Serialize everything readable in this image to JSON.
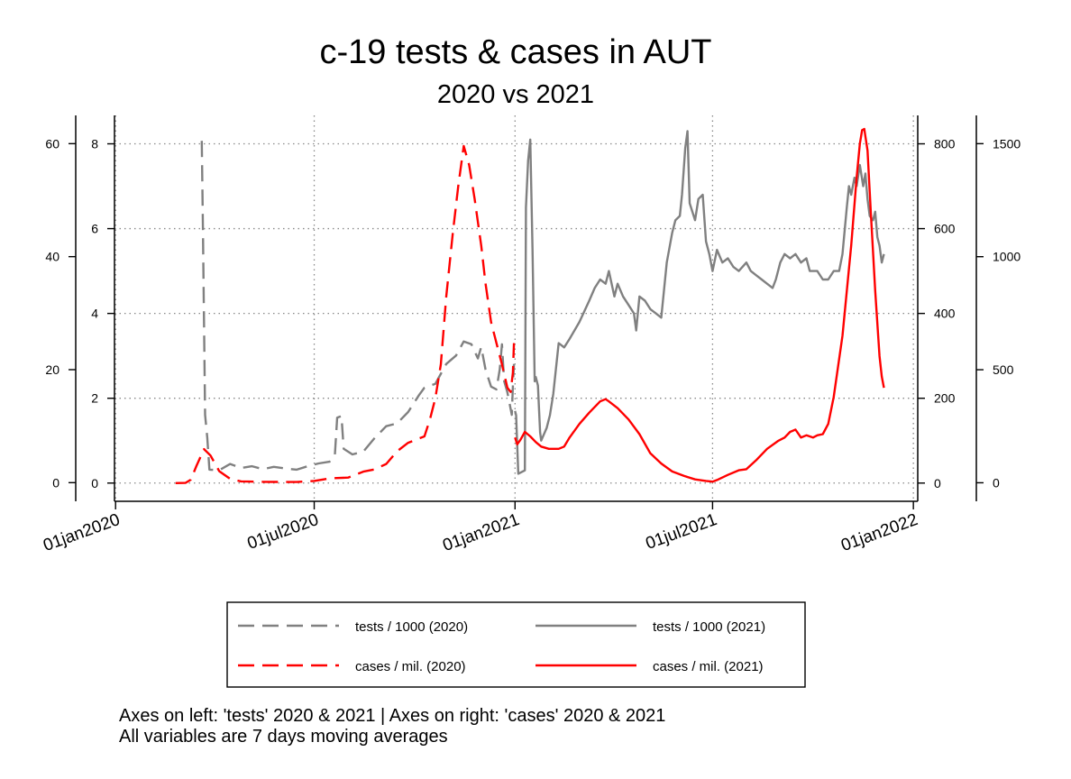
{
  "chart_data": {
    "type": "line",
    "title": "c-19 tests & cases in AUT",
    "subtitle": "2020 vs 2021",
    "notes": [
      "Axes on left: 'tests' 2020 & 2021 | Axes on right: 'cases' 2020 & 2021",
      "All variables are 7 days moving averages"
    ],
    "x_axis": {
      "type": "date",
      "range": [
        "2019-12-31",
        "2022-01-05"
      ],
      "ticks": [
        "2020-01-01",
        "2020-07-01",
        "2021-01-01",
        "2021-07-01",
        "2022-01-01"
      ],
      "tick_labels": [
        "01jan2020",
        "01jul2020",
        "01jan2021",
        "01jul2021",
        "01jan2022"
      ]
    },
    "axes": {
      "left_outer": {
        "range": [
          -3.3,
          65
        ],
        "ticks": [
          0,
          20,
          40,
          60
        ],
        "applies_to": "tests / 1000 (2020)"
      },
      "left_inner": {
        "range": [
          -0.43,
          8.67
        ],
        "ticks": [
          0,
          2,
          4,
          6,
          8
        ],
        "applies_to": "tests / 1000 (2021)"
      },
      "right_inner": {
        "range": [
          -43,
          867
        ],
        "ticks": [
          0,
          200,
          400,
          600,
          800
        ],
        "applies_to": "cases / mil. (2020)"
      },
      "right_outer": {
        "range": [
          -82,
          1625
        ],
        "ticks": [
          0,
          500,
          1000,
          1500
        ],
        "applies_to": "cases / mil. (2021)"
      }
    },
    "grid": true,
    "legend_position": "bottom",
    "legend": [
      "tests / 1000 (2020)",
      "tests / 1000 (2021)",
      "cases / mil. (2020)",
      "cases / mil. (2021)"
    ],
    "series": [
      {
        "name": "tests / 1000 (2020)",
        "axis": "left_outer",
        "color": "#808080",
        "dash": "dashed",
        "points": [
          [
            "2020-03-20",
            60.5
          ],
          [
            "2020-03-21",
            45
          ],
          [
            "2020-03-23",
            12
          ],
          [
            "2020-03-25",
            8
          ],
          [
            "2020-03-27",
            2.3
          ],
          [
            "2020-04-05",
            2.2
          ],
          [
            "2020-04-15",
            3.3
          ],
          [
            "2020-04-25",
            2.6
          ],
          [
            "2020-05-05",
            2.9
          ],
          [
            "2020-05-15",
            2.4
          ],
          [
            "2020-05-25",
            2.8
          ],
          [
            "2020-06-05",
            2.5
          ],
          [
            "2020-06-15",
            2.3
          ],
          [
            "2020-06-25",
            2.9
          ],
          [
            "2020-07-05",
            3.4
          ],
          [
            "2020-07-15",
            3.7
          ],
          [
            "2020-07-20",
            5
          ],
          [
            "2020-07-22",
            11.5
          ],
          [
            "2020-07-26",
            11.8
          ],
          [
            "2020-07-28",
            6
          ],
          [
            "2020-08-05",
            5
          ],
          [
            "2020-08-15",
            5.5
          ],
          [
            "2020-08-25",
            7.8
          ],
          [
            "2020-09-05",
            10
          ],
          [
            "2020-09-15",
            10.5
          ],
          [
            "2020-09-25",
            12.5
          ],
          [
            "2020-10-05",
            15.5
          ],
          [
            "2020-10-10",
            16.8
          ],
          [
            "2020-10-20",
            17.5
          ],
          [
            "2020-10-30",
            21
          ],
          [
            "2020-11-08",
            22.5
          ],
          [
            "2020-11-15",
            25
          ],
          [
            "2020-11-22",
            24.5
          ],
          [
            "2020-11-28",
            22
          ],
          [
            "2020-12-01",
            24
          ],
          [
            "2020-12-05",
            20
          ],
          [
            "2020-12-10",
            17
          ],
          [
            "2020-12-15",
            16.5
          ],
          [
            "2020-12-18",
            20
          ],
          [
            "2020-12-20",
            24.5
          ],
          [
            "2020-12-22",
            18
          ],
          [
            "2020-12-25",
            16
          ],
          [
            "2020-12-29",
            12
          ],
          [
            "2020-12-30",
            17
          ],
          [
            "2020-12-31",
            21
          ]
        ]
      },
      {
        "name": "cases / mil. (2020)",
        "axis": "right_inner",
        "color": "#ff0000",
        "dash": "dashed",
        "points": [
          [
            "2020-02-25",
            0
          ],
          [
            "2020-03-05",
            0.3
          ],
          [
            "2020-03-10",
            8
          ],
          [
            "2020-03-15",
            40
          ],
          [
            "2020-03-22",
            80
          ],
          [
            "2020-03-28",
            65
          ],
          [
            "2020-04-05",
            28
          ],
          [
            "2020-04-15",
            10
          ],
          [
            "2020-04-25",
            4
          ],
          [
            "2020-05-15",
            3
          ],
          [
            "2020-06-15",
            2.5
          ],
          [
            "2020-07-01",
            5
          ],
          [
            "2020-07-15",
            11
          ],
          [
            "2020-08-01",
            13
          ],
          [
            "2020-08-15",
            27
          ],
          [
            "2020-08-25",
            32
          ],
          [
            "2020-09-05",
            45
          ],
          [
            "2020-09-15",
            75
          ],
          [
            "2020-09-25",
            95
          ],
          [
            "2020-10-10",
            110
          ],
          [
            "2020-10-15",
            150
          ],
          [
            "2020-10-20",
            200
          ],
          [
            "2020-10-25",
            280
          ],
          [
            "2020-10-30",
            440
          ],
          [
            "2020-11-05",
            590
          ],
          [
            "2020-11-10",
            700
          ],
          [
            "2020-11-15",
            795
          ],
          [
            "2020-11-20",
            750
          ],
          [
            "2020-11-25",
            670
          ],
          [
            "2020-12-01",
            560
          ],
          [
            "2020-12-05",
            470
          ],
          [
            "2020-12-10",
            380
          ],
          [
            "2020-12-15",
            330
          ],
          [
            "2020-12-20",
            280
          ],
          [
            "2020-12-25",
            225
          ],
          [
            "2020-12-28",
            215
          ],
          [
            "2020-12-30",
            260
          ],
          [
            "2020-12-31",
            330
          ]
        ]
      },
      {
        "name": "tests / 1000 (2021)",
        "axis": "left_inner",
        "color": "#808080",
        "dash": "solid",
        "points": [
          [
            "2021-01-01",
            1.7
          ],
          [
            "2021-01-02",
            1.6
          ],
          [
            "2021-01-04",
            0.22
          ],
          [
            "2021-01-10",
            0.3
          ],
          [
            "2021-01-11",
            6.5
          ],
          [
            "2021-01-13",
            7.6
          ],
          [
            "2021-01-15",
            8.1
          ],
          [
            "2021-01-17",
            5.5
          ],
          [
            "2021-01-19",
            2.4
          ],
          [
            "2021-01-20",
            2.5
          ],
          [
            "2021-01-22",
            2.3
          ],
          [
            "2021-01-24",
            1.2
          ],
          [
            "2021-01-25",
            1.0
          ],
          [
            "2021-01-30",
            1.3
          ],
          [
            "2021-02-02",
            1.6
          ],
          [
            "2021-02-05",
            2.1
          ],
          [
            "2021-02-10",
            3.3
          ],
          [
            "2021-02-15",
            3.2
          ],
          [
            "2021-02-20",
            3.4
          ],
          [
            "2021-03-01",
            3.8
          ],
          [
            "2021-03-10",
            4.3
          ],
          [
            "2021-03-15",
            4.6
          ],
          [
            "2021-03-20",
            4.8
          ],
          [
            "2021-03-25",
            4.7
          ],
          [
            "2021-03-28",
            5.0
          ],
          [
            "2021-04-02",
            4.4
          ],
          [
            "2021-04-05",
            4.7
          ],
          [
            "2021-04-10",
            4.4
          ],
          [
            "2021-04-15",
            4.2
          ],
          [
            "2021-04-20",
            4.0
          ],
          [
            "2021-04-22",
            3.6
          ],
          [
            "2021-04-25",
            4.4
          ],
          [
            "2021-04-30",
            4.3
          ],
          [
            "2021-05-05",
            4.1
          ],
          [
            "2021-05-10",
            4.0
          ],
          [
            "2021-05-15",
            3.9
          ],
          [
            "2021-05-20",
            5.2
          ],
          [
            "2021-05-25",
            5.9
          ],
          [
            "2021-05-28",
            6.2
          ],
          [
            "2021-06-01",
            6.3
          ],
          [
            "2021-06-03",
            6.8
          ],
          [
            "2021-06-06",
            7.9
          ],
          [
            "2021-06-08",
            8.3
          ],
          [
            "2021-06-10",
            6.6
          ],
          [
            "2021-06-15",
            6.2
          ],
          [
            "2021-06-18",
            6.7
          ],
          [
            "2021-06-22",
            6.8
          ],
          [
            "2021-06-25",
            5.7
          ],
          [
            "2021-06-28",
            5.4
          ],
          [
            "2021-07-01",
            5.0
          ],
          [
            "2021-07-05",
            5.5
          ],
          [
            "2021-07-10",
            5.2
          ],
          [
            "2021-07-15",
            5.3
          ],
          [
            "2021-07-20",
            5.1
          ],
          [
            "2021-07-25",
            5.0
          ],
          [
            "2021-08-01",
            5.2
          ],
          [
            "2021-08-05",
            5.0
          ],
          [
            "2021-08-10",
            4.9
          ],
          [
            "2021-08-15",
            4.8
          ],
          [
            "2021-08-20",
            4.7
          ],
          [
            "2021-08-25",
            4.6
          ],
          [
            "2021-08-28",
            4.8
          ],
          [
            "2021-09-01",
            5.2
          ],
          [
            "2021-09-05",
            5.4
          ],
          [
            "2021-09-10",
            5.3
          ],
          [
            "2021-09-15",
            5.4
          ],
          [
            "2021-09-20",
            5.2
          ],
          [
            "2021-09-25",
            5.3
          ],
          [
            "2021-09-28",
            5.0
          ],
          [
            "2021-10-01",
            5.0
          ],
          [
            "2021-10-05",
            5.0
          ],
          [
            "2021-10-10",
            4.8
          ],
          [
            "2021-10-15",
            4.8
          ],
          [
            "2021-10-20",
            5.0
          ],
          [
            "2021-10-25",
            5.0
          ],
          [
            "2021-10-28",
            5.4
          ],
          [
            "2021-11-01",
            6.5
          ],
          [
            "2021-11-03",
            7.0
          ],
          [
            "2021-11-05",
            6.8
          ],
          [
            "2021-11-08",
            7.2
          ],
          [
            "2021-11-10",
            7.0
          ],
          [
            "2021-11-13",
            7.5
          ],
          [
            "2021-11-16",
            7.0
          ],
          [
            "2021-11-18",
            7.3
          ],
          [
            "2021-11-20",
            6.7
          ],
          [
            "2021-11-22",
            6.3
          ],
          [
            "2021-11-25",
            6.2
          ],
          [
            "2021-11-27",
            6.4
          ],
          [
            "2021-11-29",
            5.8
          ],
          [
            "2021-12-01",
            5.6
          ],
          [
            "2021-12-03",
            5.2
          ],
          [
            "2021-12-05",
            5.4
          ]
        ]
      },
      {
        "name": "cases / mil. (2021)",
        "axis": "right_outer",
        "color": "#ff0000",
        "dash": "solid",
        "points": [
          [
            "2021-01-01",
            200
          ],
          [
            "2021-01-03",
            170
          ],
          [
            "2021-01-06",
            190
          ],
          [
            "2021-01-10",
            225
          ],
          [
            "2021-01-15",
            205
          ],
          [
            "2021-01-20",
            180
          ],
          [
            "2021-01-25",
            160
          ],
          [
            "2021-02-01",
            150
          ],
          [
            "2021-02-10",
            150
          ],
          [
            "2021-02-15",
            160
          ],
          [
            "2021-02-20",
            200
          ],
          [
            "2021-03-01",
            260
          ],
          [
            "2021-03-10",
            310
          ],
          [
            "2021-03-20",
            360
          ],
          [
            "2021-03-25",
            370
          ],
          [
            "2021-03-28",
            360
          ],
          [
            "2021-04-05",
            330
          ],
          [
            "2021-04-15",
            280
          ],
          [
            "2021-04-25",
            215
          ],
          [
            "2021-05-05",
            130
          ],
          [
            "2021-05-15",
            85
          ],
          [
            "2021-05-25",
            50
          ],
          [
            "2021-06-05",
            30
          ],
          [
            "2021-06-15",
            15
          ],
          [
            "2021-06-25",
            8
          ],
          [
            "2021-07-01",
            5
          ],
          [
            "2021-07-05",
            12
          ],
          [
            "2021-07-15",
            35
          ],
          [
            "2021-07-25",
            55
          ],
          [
            "2021-08-01",
            60
          ],
          [
            "2021-08-10",
            100
          ],
          [
            "2021-08-20",
            150
          ],
          [
            "2021-08-30",
            185
          ],
          [
            "2021-09-05",
            200
          ],
          [
            "2021-09-10",
            225
          ],
          [
            "2021-09-15",
            235
          ],
          [
            "2021-09-20",
            200
          ],
          [
            "2021-09-25",
            210
          ],
          [
            "2021-10-01",
            200
          ],
          [
            "2021-10-05",
            210
          ],
          [
            "2021-10-10",
            215
          ],
          [
            "2021-10-15",
            260
          ],
          [
            "2021-10-20",
            380
          ],
          [
            "2021-10-28",
            650
          ],
          [
            "2021-11-05",
            1050
          ],
          [
            "2021-11-10",
            1350
          ],
          [
            "2021-11-13",
            1500
          ],
          [
            "2021-11-15",
            1560
          ],
          [
            "2021-11-17",
            1565
          ],
          [
            "2021-11-20",
            1470
          ],
          [
            "2021-11-23",
            1200
          ],
          [
            "2021-11-27",
            850
          ],
          [
            "2021-12-01",
            560
          ],
          [
            "2021-12-03",
            470
          ],
          [
            "2021-12-05",
            420
          ]
        ]
      }
    ]
  }
}
